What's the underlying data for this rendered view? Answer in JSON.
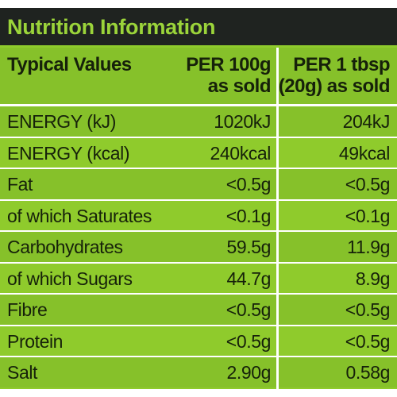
{
  "title": "Nutrition Information",
  "header": {
    "label": "Typical Values",
    "col1_line1": "PER 100g",
    "col1_line2": "as sold",
    "col2_line1": "PER 1 tbsp",
    "col2_line2": "(20g) as sold"
  },
  "rows": [
    {
      "label": "ENERGY (kJ)",
      "per100": "1020kJ",
      "perServing": "204kJ"
    },
    {
      "label": "ENERGY (kcal)",
      "per100": "240kcal",
      "perServing": "49kcal"
    },
    {
      "label": "Fat",
      "per100": "<0.5g",
      "perServing": "<0.5g"
    },
    {
      "label": "of which Saturates",
      "per100": "<0.1g",
      "perServing": "<0.1g"
    },
    {
      "label": "Carbohydrates",
      "per100": "59.5g",
      "perServing": "11.9g"
    },
    {
      "label": "of which Sugars",
      "per100": "44.7g",
      "perServing": "8.9g"
    },
    {
      "label": "Fibre",
      "per100": "<0.5g",
      "perServing": "<0.5g"
    },
    {
      "label": "Protein",
      "per100": "<0.5g",
      "perServing": "<0.5g"
    },
    {
      "label": "Salt",
      "per100": "2.90g",
      "perServing": "0.58g"
    }
  ],
  "colors": {
    "background": "#8fcb2c",
    "title_bar": "#1f2320",
    "title_text": "#9bd43a",
    "text": "#16210a",
    "lines": "#ffffff"
  }
}
